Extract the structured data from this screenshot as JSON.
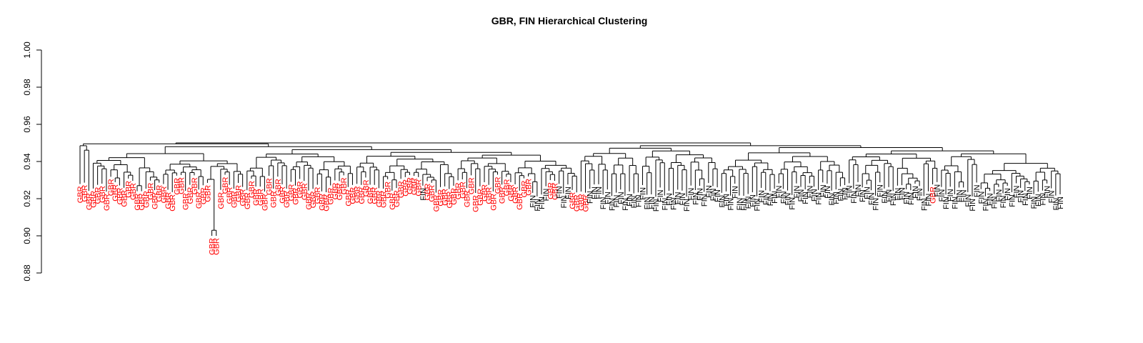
{
  "chart_data": {
    "type": "dendrogram",
    "title": "GBR, FIN Hierarchical Clustering",
    "xlabel": "",
    "ylabel": "",
    "ylim": [
      0.88,
      1.0
    ],
    "y_ticks": [
      "0.88",
      "0.90",
      "0.92",
      "0.94",
      "0.96",
      "0.98",
      "1.00"
    ],
    "root_height": 0.95,
    "top_merge_heights": [
      0.9495,
      0.949,
      0.9485
    ],
    "groups": [
      {
        "label": "GBR",
        "color": "#ff0000",
        "count": 108
      },
      {
        "label": "FIN",
        "color": "#000000",
        "count": 115
      }
    ],
    "leaf_color_by_label": {
      "GBR": "#ff0000",
      "FIN": "#000000"
    },
    "notable_merges": [
      {
        "label": "GBR",
        "pair_height": 0.903
      },
      {
        "label": "GBR",
        "pair_height": 0.908
      },
      {
        "label": "GBR",
        "pair_height": 0.927
      },
      {
        "label": "FIN",
        "pair_height": 0.929
      }
    ]
  }
}
